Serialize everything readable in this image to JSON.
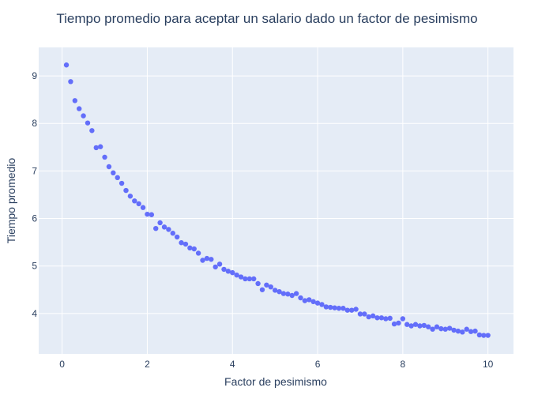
{
  "chart_data": {
    "type": "scatter",
    "title": "Tiempo promedio para aceptar un salario dado un factor de pesimismo",
    "xlabel": "Factor de pesimismo",
    "ylabel": "Tiempo promedio",
    "xlim": [
      -0.55,
      10.6
    ],
    "ylim": [
      3.15,
      9.6
    ],
    "xticks": [
      0,
      2,
      4,
      6,
      8,
      10
    ],
    "yticks": [
      4,
      5,
      6,
      7,
      8,
      9
    ],
    "grid": true,
    "colors": {
      "marker": "#636efa",
      "plot_bg": "#e5ecf6",
      "grid": "#ffffff",
      "text": "#2a3f5f"
    },
    "series": [
      {
        "x": [
          0.1,
          0.2,
          0.3,
          0.4,
          0.5,
          0.6,
          0.7,
          0.8,
          0.9,
          1.0,
          1.1,
          1.2,
          1.3,
          1.4,
          1.5,
          1.6,
          1.7,
          1.8,
          1.9,
          2.0,
          2.1,
          2.2,
          2.3,
          2.4,
          2.5,
          2.6,
          2.7,
          2.8,
          2.9,
          3.0,
          3.1,
          3.2,
          3.3,
          3.4,
          3.5,
          3.6,
          3.7,
          3.8,
          3.9,
          4.0,
          4.1,
          4.2,
          4.3,
          4.4,
          4.5,
          4.6,
          4.7,
          4.8,
          4.9,
          5.0,
          5.1,
          5.2,
          5.3,
          5.4,
          5.5,
          5.6,
          5.7,
          5.8,
          5.9,
          6.0,
          6.1,
          6.2,
          6.3,
          6.4,
          6.5,
          6.6,
          6.7,
          6.8,
          6.9,
          7.0,
          7.1,
          7.2,
          7.3,
          7.4,
          7.5,
          7.6,
          7.7,
          7.8,
          7.9,
          8.0,
          8.1,
          8.2,
          8.3,
          8.4,
          8.5,
          8.6,
          8.7,
          8.8,
          8.9,
          9.0,
          9.1,
          9.2,
          9.3,
          9.4,
          9.5,
          9.6,
          9.7,
          9.8,
          9.9,
          10.0
        ],
        "y": [
          9.23,
          8.88,
          8.48,
          8.31,
          8.16,
          8.01,
          7.85,
          7.49,
          7.51,
          7.29,
          7.09,
          6.96,
          6.86,
          6.74,
          6.59,
          6.47,
          6.37,
          6.31,
          6.23,
          6.09,
          6.08,
          5.79,
          5.91,
          5.82,
          5.77,
          5.69,
          5.61,
          5.49,
          5.46,
          5.38,
          5.36,
          5.27,
          5.12,
          5.16,
          5.14,
          4.98,
          5.04,
          4.93,
          4.89,
          4.86,
          4.81,
          4.77,
          4.73,
          4.73,
          4.73,
          4.63,
          4.5,
          4.6,
          4.56,
          4.49,
          4.46,
          4.42,
          4.41,
          4.38,
          4.42,
          4.33,
          4.27,
          4.29,
          4.25,
          4.22,
          4.19,
          4.14,
          4.13,
          4.12,
          4.11,
          4.11,
          4.07,
          4.07,
          4.09,
          3.99,
          3.99,
          3.93,
          3.95,
          3.91,
          3.91,
          3.89,
          3.9,
          3.78,
          3.8,
          3.89,
          3.77,
          3.74,
          3.77,
          3.74,
          3.75,
          3.72,
          3.67,
          3.72,
          3.68,
          3.67,
          3.69,
          3.65,
          3.63,
          3.61,
          3.67,
          3.62,
          3.63,
          3.55,
          3.54,
          3.54
        ]
      }
    ]
  }
}
